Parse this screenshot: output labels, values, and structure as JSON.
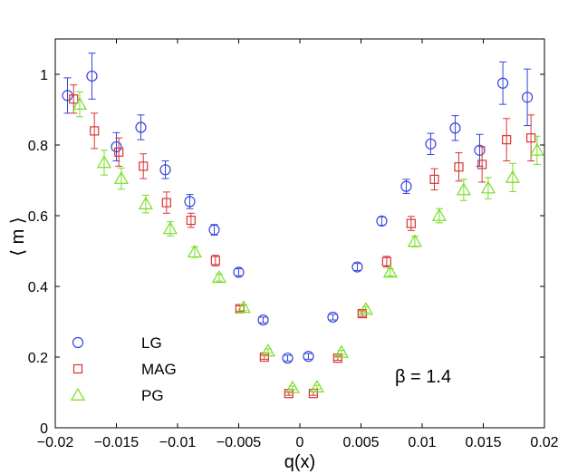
{
  "chart_data": {
    "type": "scatter",
    "title": "",
    "xlabel": "q(x)",
    "ylabel": "⟨ m ⟩",
    "xlim": [
      -0.02,
      0.02
    ],
    "ylim": [
      0,
      1.1
    ],
    "xticks": [
      -0.02,
      -0.015,
      -0.01,
      -0.005,
      0,
      0.005,
      0.01,
      0.015,
      0.02
    ],
    "xtick_labels": [
      "−0.02",
      "−0.015",
      "−0.01",
      "−0.005",
      "0",
      "0.005",
      "0.01",
      "0.015",
      "0.02"
    ],
    "yticks": [
      0,
      0.2,
      0.4,
      0.6,
      0.8,
      1
    ],
    "ytick_labels": [
      "0",
      "0.2",
      "0.4",
      "0.6",
      "0.8",
      "1"
    ],
    "grid": false,
    "legend_position": "bottom-left",
    "annotation": "β = 1.4",
    "series": [
      {
        "name": "LG",
        "marker": "circle",
        "color": "#3344dd",
        "x": [
          -0.019,
          -0.017,
          -0.015,
          -0.013,
          -0.011,
          -0.009,
          -0.007,
          -0.005,
          -0.003,
          -0.001,
          0.0007,
          0.0027,
          0.0047,
          0.0067,
          0.0087,
          0.0107,
          0.0127,
          0.0147,
          0.0166,
          0.0186
        ],
        "y": [
          0.94,
          0.995,
          0.795,
          0.85,
          0.73,
          0.64,
          0.56,
          0.44,
          0.305,
          0.197,
          0.202,
          0.313,
          0.455,
          0.585,
          0.683,
          0.803,
          0.848,
          0.785,
          0.975,
          0.935
        ],
        "err": [
          0.05,
          0.065,
          0.04,
          0.035,
          0.025,
          0.02,
          0.015,
          0.01,
          0.008,
          0.008,
          0.008,
          0.008,
          0.01,
          0.012,
          0.02,
          0.03,
          0.035,
          0.045,
          0.06,
          0.08
        ]
      },
      {
        "name": "MAG",
        "marker": "square",
        "color": "#dd3333",
        "x": [
          -0.0185,
          -0.0168,
          -0.0148,
          -0.0128,
          -0.0109,
          -0.0089,
          -0.0069,
          -0.0049,
          -0.0029,
          -0.0009,
          0.0011,
          0.0031,
          0.0051,
          0.0071,
          0.0091,
          0.011,
          0.013,
          0.0149,
          0.0169,
          0.0189
        ],
        "y": [
          0.93,
          0.84,
          0.78,
          0.74,
          0.637,
          0.587,
          0.473,
          0.337,
          0.2,
          0.097,
          0.097,
          0.197,
          0.323,
          0.47,
          0.578,
          0.703,
          0.738,
          0.745,
          0.815,
          0.82
        ],
        "err": [
          0.04,
          0.05,
          0.04,
          0.035,
          0.03,
          0.02,
          0.015,
          0.008,
          0.006,
          0.005,
          0.005,
          0.006,
          0.008,
          0.015,
          0.02,
          0.03,
          0.04,
          0.05,
          0.06,
          0.065
        ]
      },
      {
        "name": "PG",
        "marker": "triangle",
        "color": "#77dd22",
        "x": [
          -0.018,
          -0.016,
          -0.0146,
          -0.0126,
          -0.0106,
          -0.0086,
          -0.0066,
          -0.0046,
          -0.0026,
          -0.0006,
          0.0014,
          0.0034,
          0.0054,
          0.0074,
          0.0094,
          0.0114,
          0.0134,
          0.0154,
          0.0174,
          0.0194
        ],
        "y": [
          0.915,
          0.75,
          0.705,
          0.633,
          0.563,
          0.497,
          0.425,
          0.34,
          0.217,
          0.113,
          0.115,
          0.213,
          0.335,
          0.44,
          0.527,
          0.6,
          0.673,
          0.678,
          0.708,
          0.785
        ],
        "err": [
          0.035,
          0.035,
          0.03,
          0.025,
          0.02,
          0.015,
          0.01,
          0.008,
          0.006,
          0.005,
          0.005,
          0.006,
          0.008,
          0.01,
          0.015,
          0.02,
          0.03,
          0.03,
          0.04,
          0.04
        ]
      }
    ]
  }
}
